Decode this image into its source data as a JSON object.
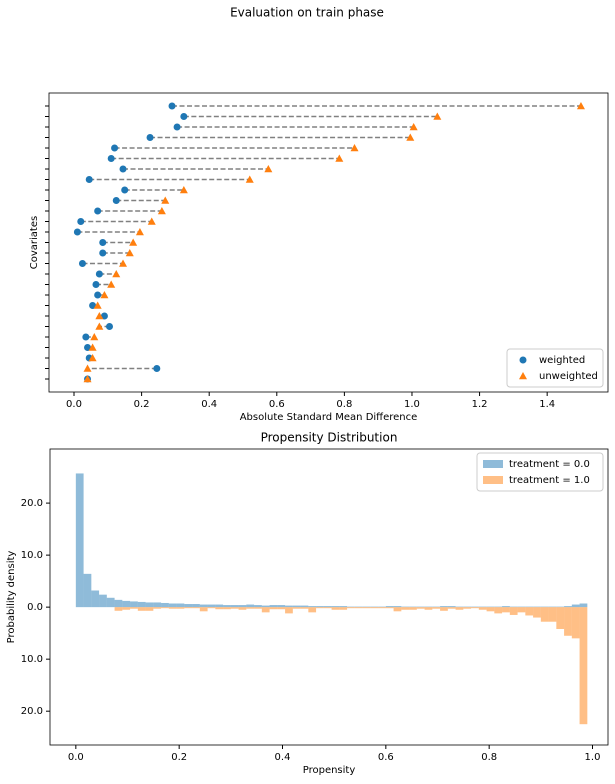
{
  "title": "Evaluation on train phase",
  "chart_data": [
    {
      "type": "dumbbell",
      "xlabel": "Absolute Standard Mean Difference",
      "ylabel": "Covariates",
      "categories": [
        null,
        null,
        null,
        null,
        null,
        null,
        null,
        null,
        null,
        null,
        null,
        null,
        null,
        null,
        null,
        null,
        null,
        null,
        null,
        null,
        null,
        null,
        null,
        null,
        null,
        null,
        null
      ],
      "series": [
        {
          "name": "weighted",
          "color": "#1f77b4",
          "marker": "o",
          "values": [
            0.29,
            0.325,
            0.305,
            0.225,
            0.12,
            0.11,
            0.145,
            0.045,
            0.15,
            0.125,
            0.07,
            0.02,
            0.01,
            0.085,
            0.085,
            0.025,
            0.075,
            0.065,
            0.07,
            0.055,
            0.09,
            0.105,
            0.035,
            0.04,
            0.045,
            0.245,
            0.04
          ]
        },
        {
          "name": "unweighted",
          "color": "#ff7f0e",
          "marker": "^",
          "values": [
            1.5,
            1.075,
            1.005,
            0.995,
            0.83,
            0.785,
            0.575,
            0.52,
            0.325,
            0.27,
            0.26,
            0.23,
            0.195,
            0.175,
            0.165,
            0.145,
            0.125,
            0.11,
            0.09,
            0.07,
            0.075,
            0.075,
            0.06,
            0.055,
            0.055,
            0.04,
            0.04
          ]
        }
      ],
      "connector_color": "#808080",
      "xlim": [
        -0.074,
        1.58
      ],
      "xticks": [
        {
          "value": 0,
          "label": "0.0"
        },
        {
          "value": 0.2,
          "label": "0.2"
        },
        {
          "value": 0.4,
          "label": "0.4"
        },
        {
          "value": 0.6,
          "label": "0.6"
        },
        {
          "value": 0.8,
          "label": "0.8"
        },
        {
          "value": 1,
          "label": "1.0"
        },
        {
          "value": 1.2,
          "label": "1.2"
        },
        {
          "value": 1.4,
          "label": "1.4"
        }
      ],
      "legend": "lower right"
    },
    {
      "type": "histogram",
      "title": "Propensity Distribution",
      "xlabel": "Propensity",
      "ylabel": "Probability density",
      "bins": [
        0,
        0.015,
        0.03,
        0.045,
        0.06,
        0.075,
        0.09,
        0.105,
        0.12,
        0.135,
        0.15,
        0.165,
        0.18,
        0.195,
        0.21,
        0.225,
        0.24,
        0.255,
        0.27,
        0.285,
        0.3,
        0.315,
        0.33,
        0.345,
        0.36,
        0.375,
        0.39,
        0.405,
        0.42,
        0.435,
        0.45,
        0.465,
        0.48,
        0.495,
        0.51,
        0.525,
        0.54,
        0.555,
        0.57,
        0.585,
        0.6,
        0.615,
        0.63,
        0.645,
        0.66,
        0.675,
        0.69,
        0.705,
        0.72,
        0.735,
        0.75,
        0.765,
        0.78,
        0.795,
        0.81,
        0.825,
        0.84,
        0.855,
        0.87,
        0.885,
        0.9,
        0.915,
        0.93,
        0.945,
        0.96,
        0.975,
        0.99
      ],
      "series": [
        {
          "name": "treatment = 0.0",
          "color": "#1f77b4",
          "alpha": 0.5,
          "values": [
            25.7,
            6.4,
            3.2,
            2.4,
            1.8,
            1.4,
            1.2,
            1.1,
            1.0,
            0.9,
            0.9,
            0.8,
            0.7,
            0.7,
            0.6,
            0.6,
            0.5,
            0.5,
            0.5,
            0.4,
            0.4,
            0.4,
            0.5,
            0.4,
            0.3,
            0.4,
            0.4,
            0.3,
            0.3,
            0.3,
            0.2,
            0.2,
            0.2,
            0.2,
            0.2,
            0.1,
            0.1,
            0.1,
            0.1,
            0.1,
            0.2,
            0.2,
            0.1,
            0.1,
            0.1,
            0.1,
            0.1,
            0.2,
            0.2,
            0.1,
            0.1,
            0.1,
            0.1,
            0.1,
            0.1,
            0.2,
            0.1,
            0.1,
            0.1,
            0.1,
            0.1,
            0.1,
            0.1,
            0.2,
            0.5,
            0.7
          ]
        },
        {
          "name": "treatment = 1.0",
          "color": "#ff7f0e",
          "alpha": 0.5,
          "values": [
            0,
            0,
            0,
            0,
            0,
            -0.7,
            -0.5,
            -0.3,
            -0.7,
            -0.7,
            -0.3,
            -0.2,
            -0.3,
            -0.3,
            -0.2,
            -0.2,
            -0.8,
            -0.2,
            -0.4,
            -0.4,
            -0.3,
            -0.5,
            -0.3,
            -0.3,
            -1.0,
            -0.4,
            -0.4,
            -1.2,
            -0.3,
            -0.3,
            -1.0,
            -0.2,
            -0.2,
            -0.5,
            -0.5,
            -0.2,
            -0.2,
            -0.2,
            -0.2,
            -0.2,
            -0.2,
            -0.8,
            -0.5,
            -0.5,
            -0.3,
            -0.5,
            -0.3,
            -0.7,
            -0.3,
            -0.5,
            -0.3,
            -0.2,
            -0.5,
            -0.8,
            -1.2,
            -1.0,
            -1.5,
            -1.0,
            -1.6,
            -2.0,
            -2.8,
            -2.8,
            -4.2,
            -5.5,
            -6.0,
            -22.5
          ]
        }
      ],
      "xlim": [
        -0.05,
        1.03
      ],
      "xticks": [
        {
          "value": 0,
          "label": "0.0"
        },
        {
          "value": 0.2,
          "label": "0.2"
        },
        {
          "value": 0.4,
          "label": "0.4"
        },
        {
          "value": 0.6,
          "label": "0.6"
        },
        {
          "value": 0.8,
          "label": "0.8"
        },
        {
          "value": 1,
          "label": "1.0"
        }
      ],
      "ylim": [
        -26.5,
        30.4
      ],
      "yticks": [
        {
          "value": -20,
          "label": "20.0"
        },
        {
          "value": -10,
          "label": "10.0"
        },
        {
          "value": 0,
          "label": "0.0"
        },
        {
          "value": 10,
          "label": "10.0"
        },
        {
          "value": 20,
          "label": "20.0"
        }
      ],
      "legend": "upper right"
    }
  ]
}
